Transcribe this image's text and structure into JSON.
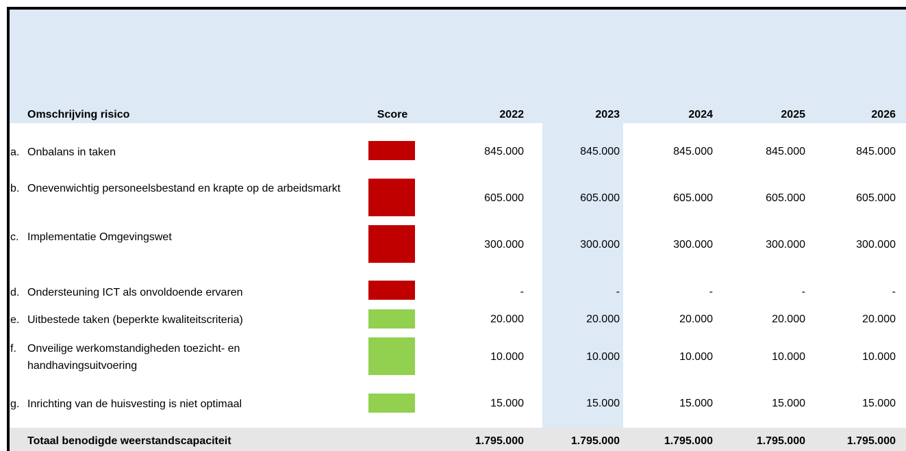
{
  "table": {
    "header": [
      "Omschrijving risico",
      "Score",
      "2022",
      "2023",
      "2024",
      "2025",
      "2026"
    ],
    "rows": [
      {
        "letter": "a.",
        "label": "Onbalans in taken",
        "score_color": "#c00000",
        "values": [
          "845.000",
          "845.000",
          "845.000",
          "845.000",
          "845.000"
        ]
      },
      {
        "letter": "b.",
        "label": "Onevenwichtig personeelsbestand en krapte op de arbeidsmarkt",
        "score_color": "#c00000",
        "values": [
          "605.000",
          "605.000",
          "605.000",
          "605.000",
          "605.000"
        ]
      },
      {
        "letter": "c.",
        "label": "Implementatie Omgevingswet",
        "score_color": "#c00000",
        "values": [
          "300.000",
          "300.000",
          "300.000",
          "300.000",
          "300.000"
        ]
      },
      {
        "letter": "d.",
        "label": "Ondersteuning ICT als onvoldoende ervaren",
        "score_color": "#c00000",
        "values": [
          "-",
          "-",
          "-",
          "-",
          "-"
        ]
      },
      {
        "letter": "e.",
        "label": "Uitbestede taken (beperkte kwaliteitscriteria)",
        "score_color": "#92d050",
        "values": [
          "20.000",
          "20.000",
          "20.000",
          "20.000",
          "20.000"
        ]
      },
      {
        "letter": "f.",
        "label": "Onveilige werkomstandigheden toezicht- en handhavingsuitvoering",
        "score_color": "#92d050",
        "values": [
          "10.000",
          "10.000",
          "10.000",
          "10.000",
          "10.000"
        ]
      },
      {
        "letter": "g.",
        "label": "Inrichting van de huisvesting is niet optimaal",
        "score_color": "#92d050",
        "values": [
          "15.000",
          "15.000",
          "15.000",
          "15.000",
          "15.000"
        ]
      }
    ],
    "total": {
      "label": "Totaal benodigde weerstandscapaciteit",
      "values": [
        "1.795.000",
        "1.795.000",
        "1.795.000",
        "1.795.000",
        "1.795.000"
      ]
    }
  }
}
